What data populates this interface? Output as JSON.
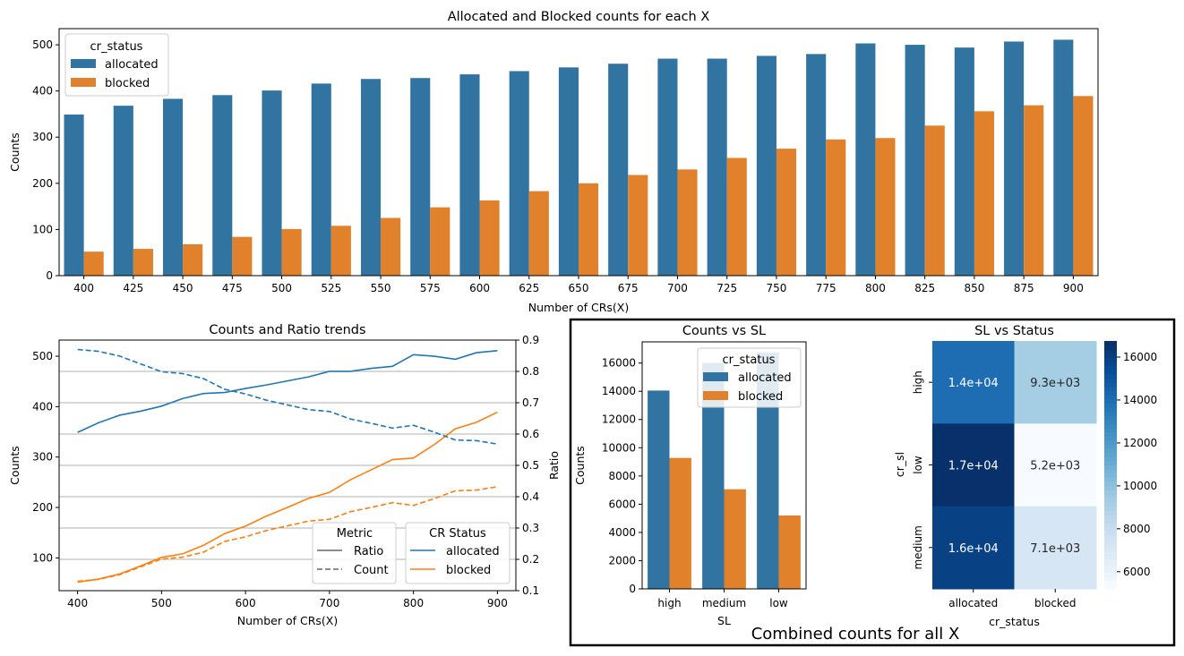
{
  "colors": {
    "allocated": "#1f77b4",
    "blocked": "#ff7f0e",
    "allocated_bar": "#3274a1",
    "blocked_bar": "#e1812c"
  },
  "figure": {
    "suptitle": "Combined counts for all X"
  },
  "chart_data": [
    {
      "type": "bar",
      "title": "Allocated and Blocked counts for each X",
      "xlabel": "Number of CRs(X)",
      "ylabel": "Counts",
      "ylim": [
        0,
        535
      ],
      "yticks": [
        0,
        100,
        200,
        300,
        400,
        500
      ],
      "categories": [
        "400",
        "425",
        "450",
        "475",
        "500",
        "525",
        "550",
        "575",
        "600",
        "625",
        "650",
        "675",
        "700",
        "725",
        "750",
        "775",
        "800",
        "825",
        "850",
        "875",
        "900"
      ],
      "legend": {
        "title": "cr_status",
        "placement": "upper-left"
      },
      "series": [
        {
          "name": "allocated",
          "values": [
            349,
            368,
            383,
            391,
            401,
            416,
            426,
            428,
            436,
            443,
            451,
            459,
            470,
            470,
            476,
            480,
            503,
            500,
            494,
            507,
            511
          ]
        },
        {
          "name": "blocked",
          "values": [
            52,
            58,
            68,
            84,
            101,
            108,
            125,
            148,
            163,
            183,
            200,
            218,
            230,
            255,
            275,
            295,
            298,
            325,
            356,
            369,
            389
          ]
        }
      ]
    },
    {
      "type": "line",
      "title": "Counts and Ratio trends",
      "xlabel": "Number of CRs(X)",
      "ylabel": "Counts",
      "y2label": "Ratio",
      "xlim": [
        378,
        922
      ],
      "ylim": [
        35,
        532
      ],
      "y2lim": [
        0.1,
        0.9
      ],
      "xticks": [
        400,
        500,
        600,
        700,
        800,
        900
      ],
      "yticks": [
        100,
        200,
        300,
        400,
        500
      ],
      "y2ticks": [
        0.1,
        0.2,
        0.3,
        0.4,
        0.5,
        0.6,
        0.7,
        0.8,
        0.9
      ],
      "grid": "right-axis horizontal",
      "x": [
        400,
        425,
        450,
        475,
        500,
        525,
        550,
        575,
        600,
        625,
        650,
        675,
        700,
        725,
        750,
        775,
        800,
        825,
        850,
        875,
        900
      ],
      "series": [
        {
          "name": "allocated",
          "metric": "Count",
          "axis": "left",
          "values": [
            349,
            368,
            383,
            391,
            401,
            416,
            426,
            428,
            436,
            443,
            451,
            459,
            470,
            470,
            476,
            480,
            503,
            500,
            494,
            507,
            511
          ]
        },
        {
          "name": "blocked",
          "metric": "Count",
          "axis": "left",
          "values": [
            52,
            58,
            68,
            84,
            101,
            108,
            125,
            148,
            163,
            183,
            200,
            218,
            230,
            255,
            275,
            295,
            298,
            325,
            356,
            369,
            389
          ]
        },
        {
          "name": "allocated",
          "metric": "Ratio",
          "axis": "right",
          "values": [
            0.87,
            0.864,
            0.849,
            0.824,
            0.799,
            0.793,
            0.777,
            0.743,
            0.728,
            0.708,
            0.693,
            0.678,
            0.672,
            0.648,
            0.634,
            0.619,
            0.628,
            0.606,
            0.581,
            0.579,
            0.568
          ]
        },
        {
          "name": "blocked",
          "metric": "Ratio",
          "axis": "right",
          "values": [
            0.13,
            0.136,
            0.151,
            0.176,
            0.201,
            0.207,
            0.223,
            0.257,
            0.272,
            0.292,
            0.307,
            0.322,
            0.328,
            0.352,
            0.366,
            0.381,
            0.372,
            0.394,
            0.419,
            0.421,
            0.432
          ]
        }
      ],
      "legends": [
        {
          "title": "Metric",
          "entries": [
            "Ratio",
            "Count"
          ]
        },
        {
          "title": "CR Status",
          "entries": [
            "allocated",
            "blocked"
          ]
        }
      ]
    },
    {
      "type": "bar",
      "title": "Counts vs SL",
      "xlabel": "SL",
      "ylabel": "Counts",
      "ylim": [
        0,
        17500
      ],
      "yticks": [
        0,
        2000,
        4000,
        6000,
        8000,
        10000,
        12000,
        14000,
        16000
      ],
      "categories": [
        "high",
        "medium",
        "low"
      ],
      "legend": {
        "title": "cr_status",
        "placement": "upper-center"
      },
      "series": [
        {
          "name": "allocated",
          "values": [
            14050,
            16000,
            16750
          ]
        },
        {
          "name": "blocked",
          "values": [
            9280,
            7060,
            5200
          ]
        }
      ]
    },
    {
      "type": "heatmap",
      "title": "SL vs Status",
      "xlabel": "cr_status",
      "ylabel": "cr_sl",
      "rows": [
        "high",
        "low",
        "medium"
      ],
      "cols": [
        "allocated",
        "blocked"
      ],
      "values": [
        [
          14050,
          9280
        ],
        [
          16750,
          5200
        ],
        [
          16000,
          7060
        ]
      ],
      "annotations": [
        [
          "1.4e+04",
          "9.3e+03"
        ],
        [
          "1.7e+04",
          "5.2e+03"
        ],
        [
          "1.6e+04",
          "7.1e+03"
        ]
      ],
      "colorbar": {
        "range": [
          5200,
          16750
        ],
        "ticks": [
          6000,
          8000,
          10000,
          12000,
          14000,
          16000
        ],
        "cmap": "Blues"
      }
    }
  ]
}
